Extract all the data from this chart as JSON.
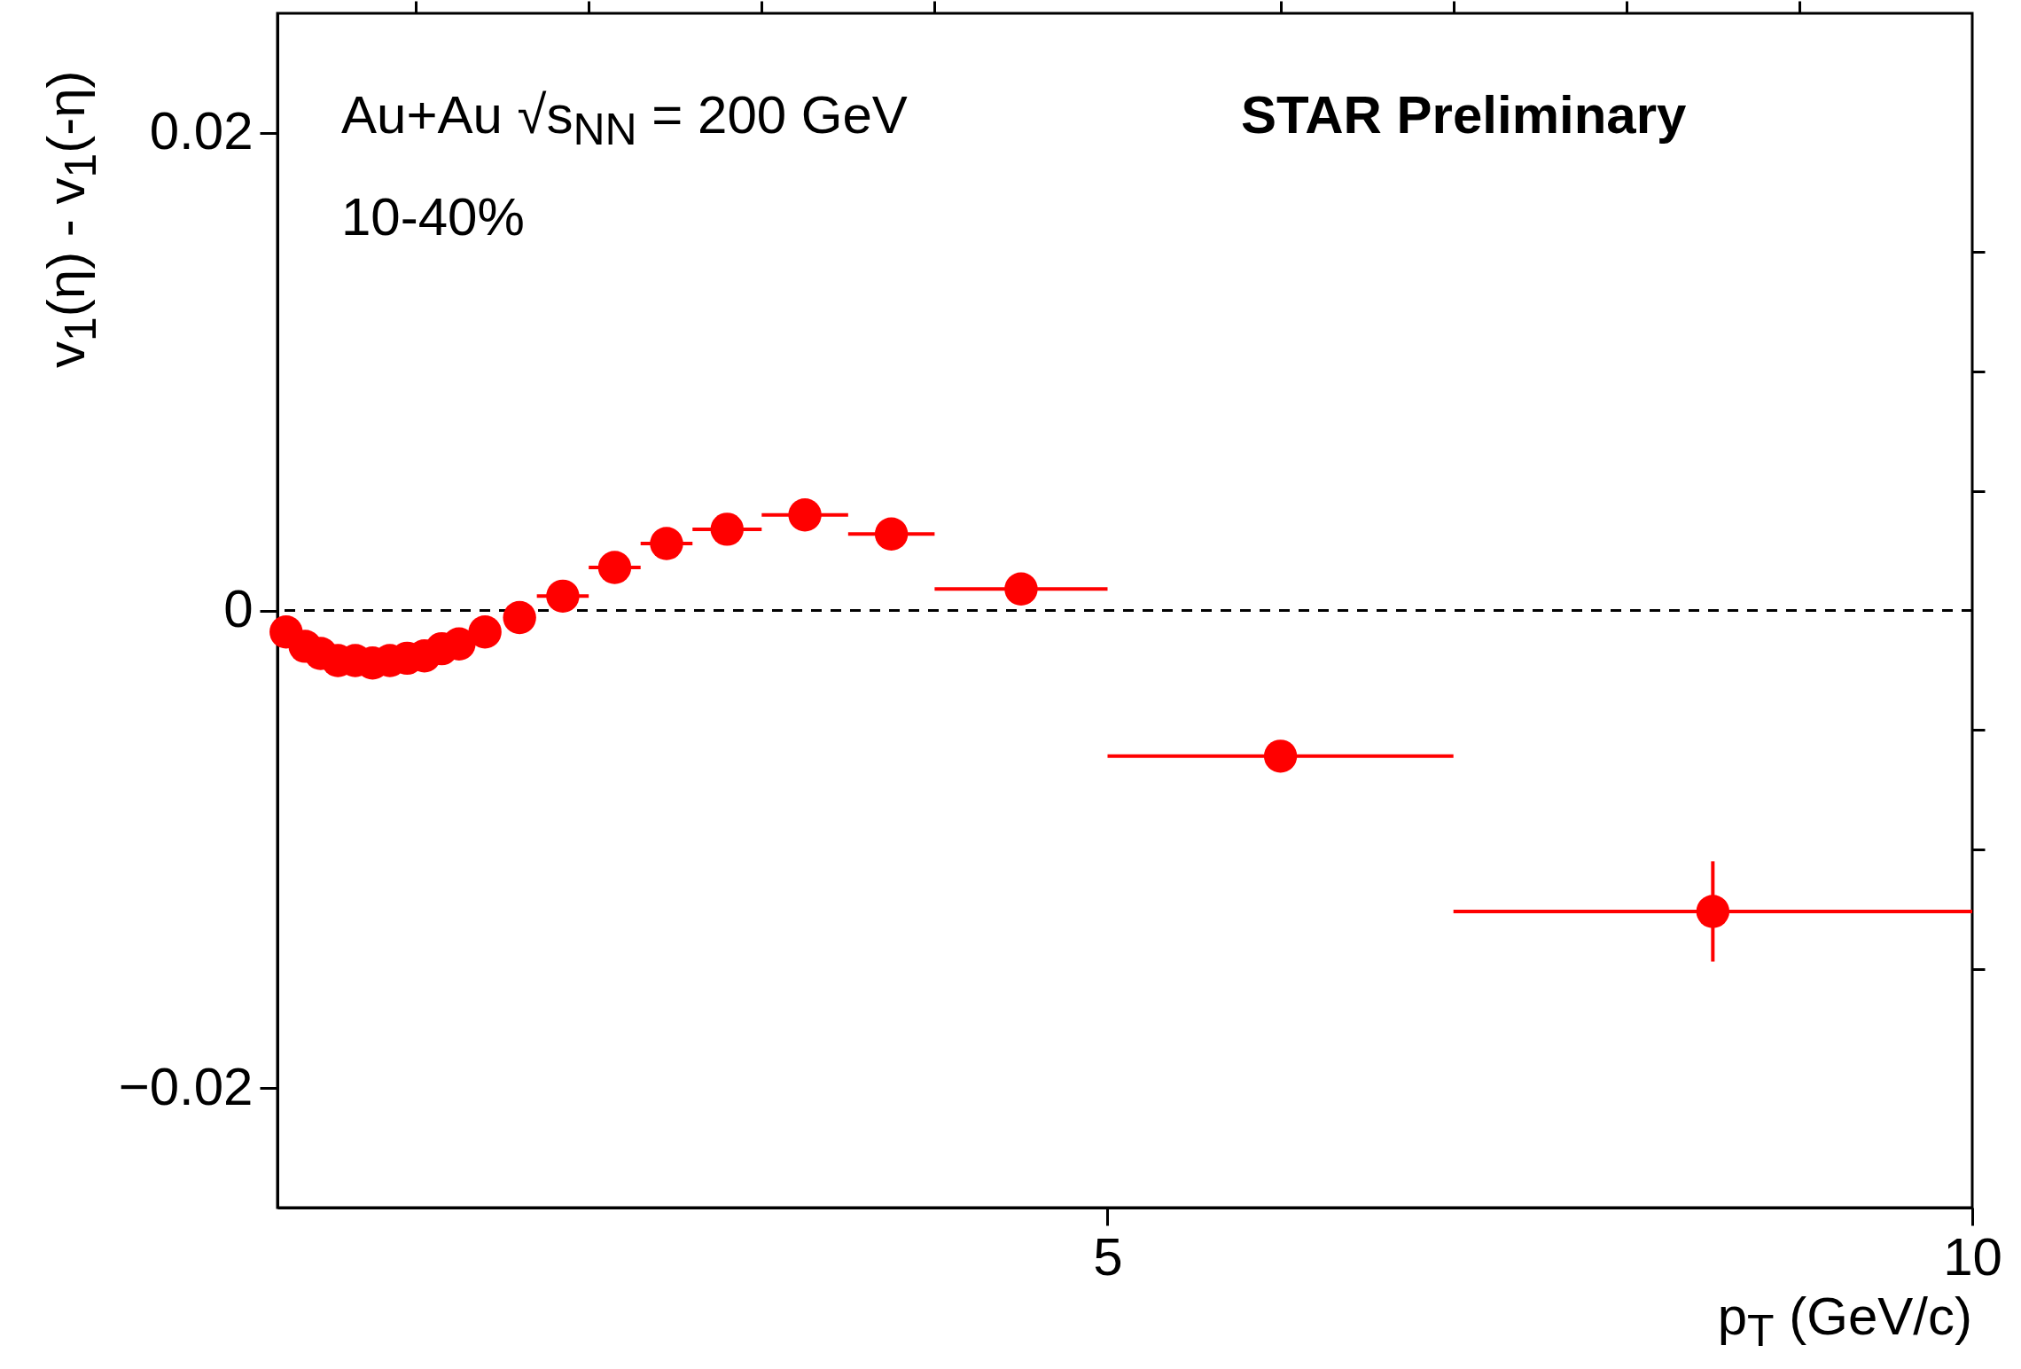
{
  "chart_data": {
    "type": "scatter",
    "xlabel": "p$_{T}$ (GeV/c)",
    "ylabel": "v$_{1}$(η) - v$_{1}$(-η)",
    "annotations": [
      "Au+Au √s$_{NN}$ = 200 GeV",
      "10-40%",
      "STAR  Preliminary"
    ],
    "x": [
      0.25,
      0.36,
      0.45,
      0.55,
      0.65,
      0.75,
      0.85,
      0.95,
      1.05,
      1.15,
      1.25,
      1.4,
      1.6,
      1.85,
      2.15,
      2.45,
      2.8,
      3.25,
      3.75,
      4.5,
      6.0,
      8.5
    ],
    "series": [
      {
        "color": "#ff0000",
        "values": [
          -0.0009,
          -0.0015,
          -0.0018,
          -0.0021,
          -0.0021,
          -0.0022,
          -0.0021,
          -0.002,
          -0.0019,
          -0.0016,
          -0.0014,
          -0.0009,
          -0.0003,
          0.0006,
          0.0018,
          0.0028,
          0.0034,
          0.004,
          0.0032,
          0.0009,
          -0.0061,
          -0.0126
        ],
        "errors": [
          null,
          null,
          null,
          null,
          null,
          null,
          null,
          null,
          null,
          null,
          null,
          null,
          null,
          null,
          null,
          null,
          null,
          null,
          null,
          null,
          null,
          0.0021
        ],
        "xerrors": [
          null,
          null,
          null,
          null,
          null,
          null,
          null,
          null,
          null,
          null,
          null,
          null,
          null,
          0.15,
          0.15,
          0.15,
          0.2,
          0.25,
          0.25,
          0.5,
          1,
          1.5
        ]
      }
    ],
    "marker": "circle",
    "xlim": [
      0.2,
      10
    ],
    "ylim": [
      -0.025,
      0.025
    ],
    "xticks": [
      {
        "value": 1,
        "label": null
      },
      {
        "value": 2,
        "label": null
      },
      {
        "value": 3,
        "label": null
      },
      {
        "value": 4,
        "label": null
      },
      5,
      {
        "value": 6,
        "label": null
      },
      {
        "value": 7,
        "label": null
      },
      {
        "value": 8,
        "label": null
      },
      {
        "value": 9,
        "label": null
      },
      10
    ],
    "yticks": [
      {
        "value": -0.02,
        "label": "−0.02"
      },
      {
        "value": -0.015,
        "label": null
      },
      {
        "value": -0.01,
        "label": null
      },
      {
        "value": -0.005,
        "label": null
      },
      0,
      {
        "value": 0.005,
        "label": null
      },
      {
        "value": 0.01,
        "label": null
      },
      {
        "value": 0.015,
        "label": null
      },
      0.02
    ],
    "ref_lines": [
      {
        "axis": "y",
        "value": 0,
        "line_style": "dashed",
        "color": "#000000"
      }
    ],
    "grid": false
  }
}
